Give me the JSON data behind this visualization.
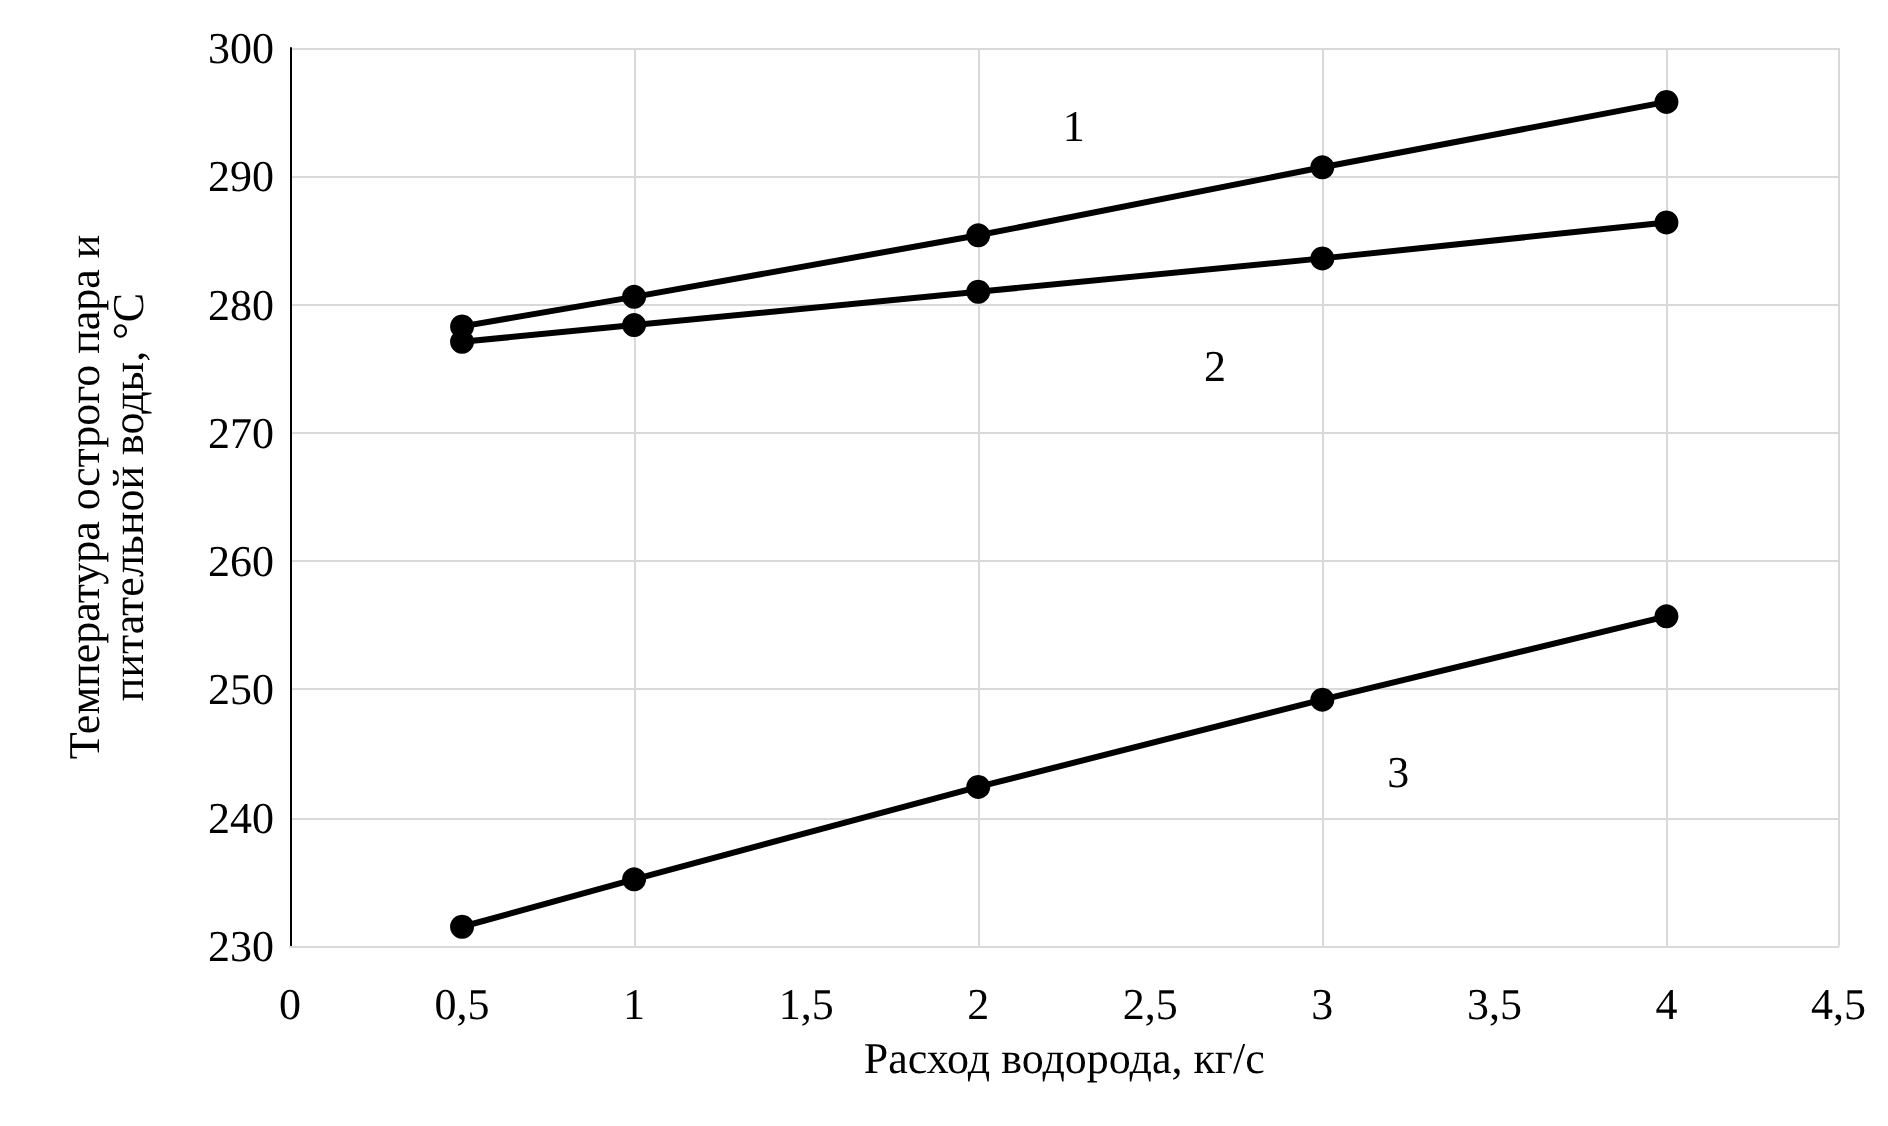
{
  "chart_data": {
    "type": "line",
    "xlabel": "Расход водорода, кг/с",
    "ylabel": "Температура острого пара и питательной воды, °C",
    "x": [
      0.5,
      1,
      2,
      3,
      4
    ],
    "series": [
      {
        "color": "#000000",
        "values": [
          278.3,
          280.6,
          285.4,
          290.7,
          295.8
        ]
      },
      {
        "color": "#000000",
        "values": [
          277.1,
          278.4,
          281.0,
          283.6,
          286.4
        ]
      },
      {
        "color": "#000000",
        "values": [
          231.5,
          235.2,
          242.4,
          249.2,
          255.7
        ]
      }
    ],
    "xlim": [
      0,
      4.5
    ],
    "xticks": [
      0,
      {
        "value": 0.5,
        "label": "0,5"
      },
      1,
      {
        "value": 1.5,
        "label": "1,5"
      },
      2,
      {
        "value": 2.5,
        "label": "2,5"
      },
      3,
      {
        "value": 3.5,
        "label": "3,5"
      },
      4,
      {
        "value": 4.5,
        "label": "4,5"
      }
    ],
    "ylim": [
      230,
      300
    ],
    "yticks": [
      230,
      240,
      250,
      260,
      270,
      280,
      290,
      300
    ],
    "annotations": [
      "1",
      "2",
      "3"
    ],
    "grid": true,
    "marker": "circle",
    "line_style": "solid"
  }
}
